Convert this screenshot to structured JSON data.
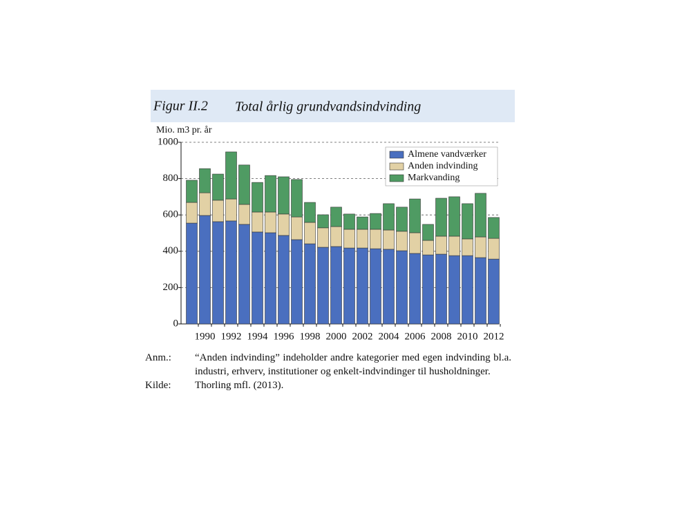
{
  "chart_data": {
    "type": "stacked_bar",
    "figure_label": "Figur II.2",
    "title": "Total årlig grundvandsindvinding",
    "y_label": "Mio. m3 pr. år",
    "categories": [
      null,
      "1990",
      null,
      "1992",
      null,
      "1994",
      null,
      "1996",
      null,
      "1998",
      null,
      "2000",
      null,
      "2002",
      null,
      "2004",
      null,
      "2006",
      null,
      "2008",
      null,
      "2010",
      null,
      "2012"
    ],
    "series": [
      {
        "name": "Almene vandværker",
        "color": "#4a6fbf",
        "values": [
          555,
          597,
          563,
          567,
          548,
          506,
          502,
          487,
          464,
          441,
          422,
          426,
          418,
          418,
          414,
          411,
          403,
          388,
          380,
          384,
          376,
          376,
          365,
          357
        ]
      },
      {
        "name": "Anden indvinding",
        "color": "#e2d1a5",
        "values": [
          114,
          125,
          118,
          121,
          110,
          110,
          114,
          118,
          125,
          118,
          107,
          110,
          103,
          103,
          107,
          106,
          107,
          114,
          80,
          99,
          107,
          92,
          114,
          114
        ]
      },
      {
        "name": "Markvanding",
        "color": "#4f9b63",
        "values": [
          122,
          133,
          144,
          259,
          217,
          163,
          201,
          205,
          206,
          110,
          72,
          107,
          84,
          68,
          87,
          145,
          133,
          186,
          88,
          209,
          217,
          194,
          240,
          115
        ]
      }
    ],
    "ylim": [
      0,
      1000
    ],
    "yticks": [
      0,
      200,
      400,
      600,
      800,
      1000
    ],
    "grid": true,
    "legend": "upper right"
  },
  "notes": [
    {
      "label": "Anm.:",
      "text": "“Anden indvinding” indeholder andre kategorier med egen indvinding bl.a. industri, erhverv, institutioner og enkelt-indvindinger til husholdninger."
    },
    {
      "label": "Kilde:",
      "text": "Thorling mfl. (2013)."
    }
  ]
}
